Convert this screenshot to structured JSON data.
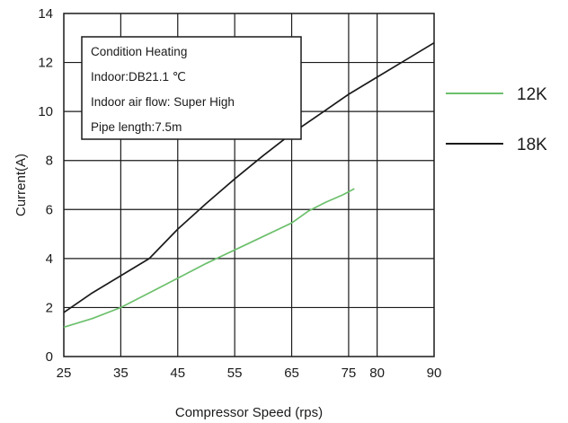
{
  "chart_data": {
    "type": "line",
    "xlabel": "Compressor Speed (rps)",
    "ylabel": "Current(A)",
    "xlim": [
      25,
      90
    ],
    "ylim": [
      0,
      14
    ],
    "x_ticks": [
      25,
      35,
      45,
      55,
      65,
      75,
      80,
      90
    ],
    "y_ticks": [
      0,
      2,
      4,
      6,
      8,
      10,
      12,
      14
    ],
    "grid": true,
    "legend_position": "right",
    "annotation": [
      "Condition  Heating",
      "Indoor:DB21.1  ℃",
      "Indoor air flow: Super High",
      "Pipe length:7.5m"
    ],
    "series": [
      {
        "name": "12K",
        "color": "#6cc06c",
        "x": [
          25,
          30,
          35,
          40,
          45,
          50,
          55,
          60,
          65,
          68,
          71,
          74,
          76
        ],
        "y": [
          1.2,
          1.55,
          2.0,
          2.6,
          3.2,
          3.8,
          4.35,
          4.9,
          5.45,
          5.95,
          6.3,
          6.6,
          6.85
        ]
      },
      {
        "name": "18K",
        "color": "#1a1a1a",
        "x": [
          25,
          30,
          35,
          40,
          45,
          50,
          55,
          60,
          65,
          70,
          75,
          80,
          85,
          90
        ],
        "y": [
          1.8,
          2.6,
          3.3,
          4.0,
          5.2,
          6.25,
          7.25,
          8.2,
          9.1,
          9.9,
          10.7,
          11.4,
          12.1,
          12.8
        ]
      }
    ]
  }
}
